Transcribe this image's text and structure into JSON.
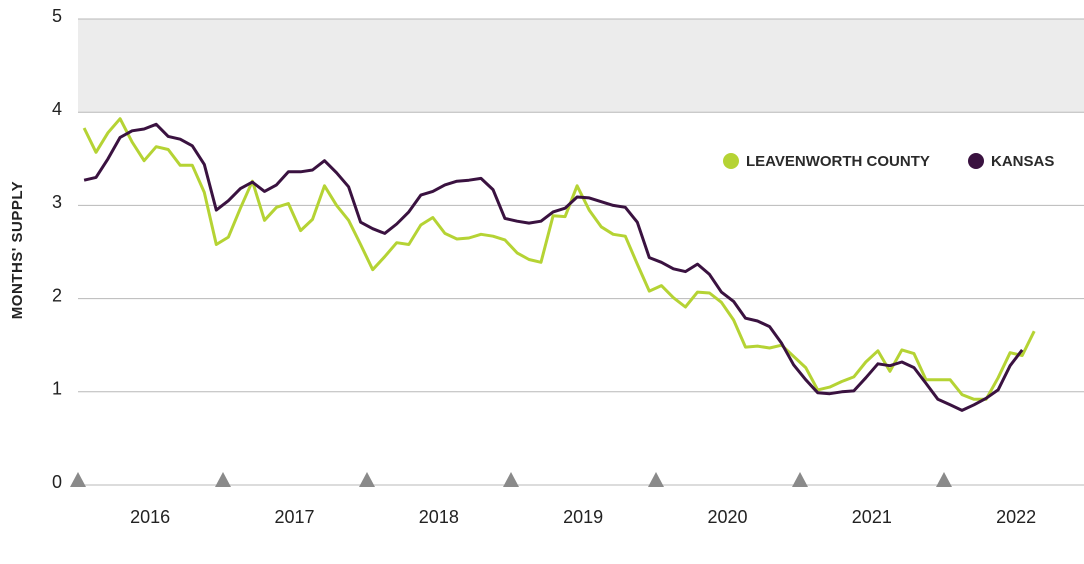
{
  "chart_data": {
    "type": "line",
    "ylabel": "MONTHS' SUPPLY",
    "x": [
      2016.042,
      2016.125,
      2016.208,
      2016.292,
      2016.375,
      2016.458,
      2016.542,
      2016.625,
      2016.708,
      2016.792,
      2016.875,
      2016.958,
      2017.042,
      2017.125,
      2017.208,
      2017.292,
      2017.375,
      2017.458,
      2017.542,
      2017.625,
      2017.708,
      2017.792,
      2017.875,
      2017.958,
      2018.042,
      2018.125,
      2018.208,
      2018.292,
      2018.375,
      2018.458,
      2018.542,
      2018.625,
      2018.708,
      2018.792,
      2018.875,
      2018.958,
      2019.042,
      2019.125,
      2019.208,
      2019.292,
      2019.375,
      2019.458,
      2019.542,
      2019.625,
      2019.708,
      2019.792,
      2019.875,
      2019.958,
      2020.042,
      2020.125,
      2020.208,
      2020.292,
      2020.375,
      2020.458,
      2020.542,
      2020.625,
      2020.708,
      2020.792,
      2020.875,
      2020.958,
      2021.042,
      2021.125,
      2021.208,
      2021.292,
      2021.375,
      2021.458,
      2021.542,
      2021.625,
      2021.708,
      2021.792,
      2021.875,
      2021.958,
      2022.042,
      2022.125,
      2022.208,
      2022.292,
      2022.375,
      2022.458,
      2022.542,
      2022.625
    ],
    "series": [
      {
        "name": "LEAVENWORTH COUNTY",
        "color": "#b5d334",
        "values": [
          3.83,
          3.57,
          3.78,
          3.93,
          3.68,
          3.48,
          3.63,
          3.6,
          3.43,
          3.43,
          3.14,
          2.58,
          2.66,
          2.97,
          3.26,
          2.84,
          2.98,
          3.02,
          2.73,
          2.85,
          3.21,
          3.0,
          2.84,
          2.58,
          2.31,
          2.45,
          2.6,
          2.58,
          2.79,
          2.87,
          2.7,
          2.64,
          2.65,
          2.69,
          2.67,
          2.63,
          2.49,
          2.42,
          2.39,
          2.89,
          2.88,
          3.21,
          2.95,
          2.77,
          2.69,
          2.67,
          2.37,
          2.08,
          2.14,
          2.01,
          1.91,
          2.07,
          2.06,
          1.96,
          1.77,
          1.48,
          1.49,
          1.47,
          1.5,
          1.38,
          1.26,
          1.02,
          1.05,
          1.11,
          1.16,
          1.32,
          1.44,
          1.22,
          1.45,
          1.41,
          1.13,
          1.13,
          1.13,
          0.97,
          0.92,
          0.92,
          1.15,
          1.42,
          1.39,
          1.65
        ]
      },
      {
        "name": "KANSAS",
        "color": "#3a1240",
        "values": [
          3.27,
          3.3,
          3.5,
          3.73,
          3.8,
          3.82,
          3.87,
          3.74,
          3.71,
          3.64,
          3.44,
          2.95,
          3.05,
          3.18,
          3.25,
          3.15,
          3.22,
          3.36,
          3.36,
          3.38,
          3.48,
          3.35,
          3.2,
          2.82,
          2.75,
          2.7,
          2.8,
          2.93,
          3.11,
          3.15,
          3.22,
          3.26,
          3.27,
          3.29,
          3.17,
          2.86,
          2.83,
          2.81,
          2.83,
          2.93,
          2.97,
          3.09,
          3.08,
          3.04,
          3.0,
          2.98,
          2.82,
          2.44,
          2.39,
          2.32,
          2.29,
          2.37,
          2.26,
          2.07,
          1.97,
          1.79,
          1.76,
          1.7,
          1.52,
          1.29,
          1.13,
          0.99,
          0.98,
          1.0,
          1.01,
          1.15,
          1.3,
          1.28,
          1.32,
          1.26,
          1.09,
          0.92,
          0.86,
          0.8,
          0.86,
          0.93,
          1.02,
          1.28,
          1.45,
          null
        ]
      }
    ],
    "xlim": [
      2016,
      2022.97
    ],
    "xticks": [
      {
        "value": 2016.5,
        "label": "2016"
      },
      {
        "value": 2017.5,
        "label": "2017"
      },
      {
        "value": 2018.5,
        "label": "2018"
      },
      {
        "value": 2019.5,
        "label": "2019"
      },
      {
        "value": 2020.5,
        "label": "2020"
      },
      {
        "value": 2021.5,
        "label": "2021"
      },
      {
        "value": 2022.5,
        "label": "2022"
      }
    ],
    "ylim": [
      0,
      5
    ],
    "yticks": [
      0,
      1,
      2,
      3,
      4,
      5
    ],
    "shaded_band": [
      4,
      5
    ],
    "grid": true
  }
}
